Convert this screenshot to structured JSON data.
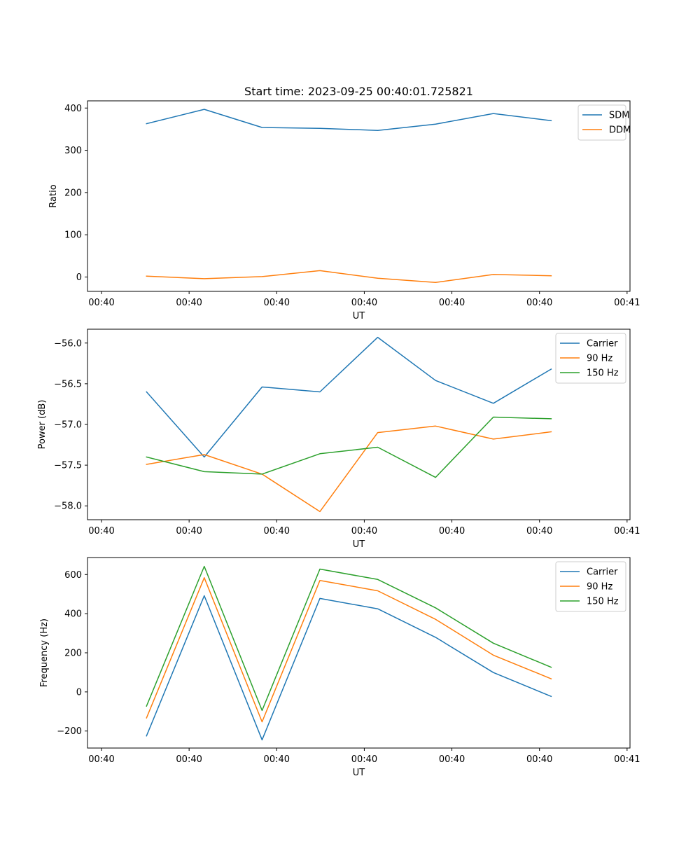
{
  "figure_title": "Start time: 2023-09-25 00:40:01.725821",
  "colors": {
    "series1": "#1f77b4",
    "series2": "#ff7f0e",
    "series3": "#2ca02c",
    "axes": "#000000",
    "legend_border": "#cccccc"
  },
  "chart_data": [
    {
      "type": "line",
      "title": "Start time: 2023-09-25 00:40:01.725821",
      "xlabel": "UT",
      "ylabel": "Ratio",
      "xlim": [
        -0.24,
        9.05
      ],
      "ylim": [
        -34,
        417
      ],
      "x": [
        0.77,
        1.76,
        2.75,
        3.74,
        4.73,
        5.72,
        6.71,
        7.7
      ],
      "x_ticks": [
        0,
        1.5,
        3,
        4.5,
        6,
        7.5,
        9
      ],
      "x_tick_labels": [
        "00:40",
        "00:40",
        "00:40",
        "00:40",
        "00:40",
        "00:40",
        "00:41"
      ],
      "y_ticks": [
        0,
        100,
        200,
        300,
        400
      ],
      "y_tick_labels": [
        "0",
        "100",
        "200",
        "300",
        "400"
      ],
      "legend_position": "upper-right",
      "series": [
        {
          "name": "SDM",
          "values": [
            363,
            397,
            354,
            352,
            347,
            362,
            387,
            370
          ]
        },
        {
          "name": "DDM",
          "values": [
            2,
            -4,
            1,
            15,
            -3,
            -13,
            6,
            3
          ]
        }
      ]
    },
    {
      "type": "line",
      "xlabel": "UT",
      "ylabel": "Power (dB)",
      "xlim": [
        -0.24,
        9.05
      ],
      "ylim": [
        -58.17,
        -55.83
      ],
      "x": [
        0.77,
        1.76,
        2.75,
        3.74,
        4.73,
        5.72,
        6.71,
        7.7
      ],
      "x_ticks": [
        0,
        1.5,
        3,
        4.5,
        6,
        7.5,
        9
      ],
      "x_tick_labels": [
        "00:40",
        "00:40",
        "00:40",
        "00:40",
        "00:40",
        "00:40",
        "00:41"
      ],
      "y_ticks": [
        -58.0,
        -57.5,
        -57.0,
        -56.5,
        -56.0
      ],
      "y_tick_labels": [
        "−58.0",
        "−57.5",
        "−57.0",
        "−56.5",
        "−56.0"
      ],
      "legend_position": "upper-right",
      "series": [
        {
          "name": "Carrier",
          "values": [
            -56.6,
            -57.4,
            -56.54,
            -56.6,
            -55.93,
            -56.46,
            -56.74,
            -56.32
          ]
        },
        {
          "name": "90 Hz",
          "values": [
            -57.49,
            -57.37,
            -57.61,
            -58.07,
            -57.1,
            -57.02,
            -57.18,
            -57.09
          ]
        },
        {
          "name": "150 Hz",
          "values": [
            -57.4,
            -57.58,
            -57.61,
            -57.36,
            -57.28,
            -57.65,
            -56.91,
            -56.93
          ]
        }
      ]
    },
    {
      "type": "line",
      "xlabel": "UT",
      "ylabel": "Frequency (Hz)",
      "xlim": [
        -0.24,
        9.05
      ],
      "ylim": [
        -287,
        687
      ],
      "x": [
        0.77,
        1.76,
        2.75,
        3.74,
        4.73,
        5.72,
        6.71,
        7.7
      ],
      "x_ticks": [
        0,
        1.5,
        3,
        4.5,
        6,
        7.5,
        9
      ],
      "x_tick_labels": [
        "00:40",
        "00:40",
        "00:40",
        "00:40",
        "00:40",
        "00:40",
        "00:41"
      ],
      "y_ticks": [
        -200,
        0,
        200,
        400,
        600
      ],
      "y_tick_labels": [
        "−200",
        "0",
        "200",
        "400",
        "600"
      ],
      "legend_position": "upper-right",
      "series": [
        {
          "name": "Carrier",
          "values": [
            -225,
            492,
            -245,
            478,
            425,
            279,
            99,
            -23
          ]
        },
        {
          "name": "90 Hz",
          "values": [
            -133,
            584,
            -153,
            570,
            517,
            371,
            188,
            67
          ]
        },
        {
          "name": "150 Hz",
          "values": [
            -73,
            642,
            -95,
            628,
            575,
            430,
            249,
            126
          ]
        }
      ]
    }
  ]
}
